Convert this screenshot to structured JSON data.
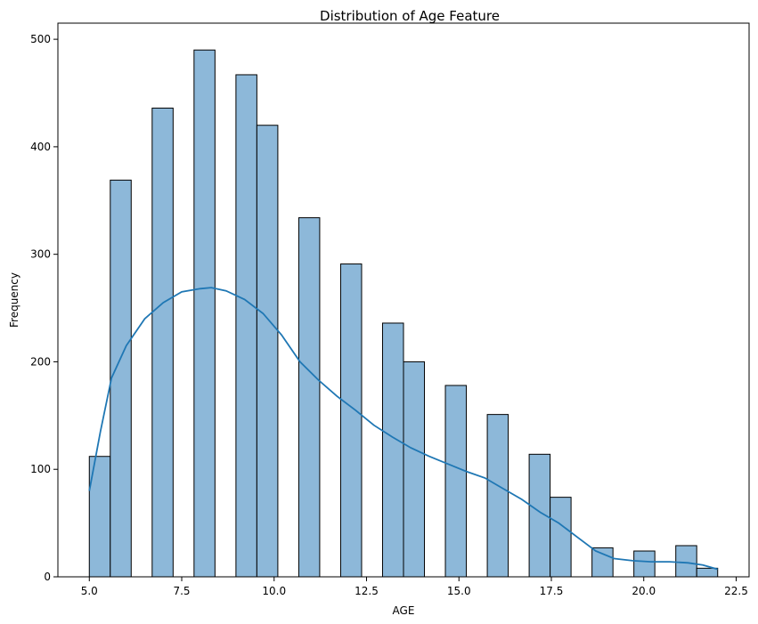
{
  "chart_data": {
    "type": "bar",
    "subtype": "histogram-with-kde",
    "title": "Distribution of Age Feature",
    "xlabel": "AGE",
    "ylabel": "Frequency",
    "xlim": [
      4.15,
      22.85
    ],
    "ylim": [
      0,
      515
    ],
    "xticks": [
      5.0,
      7.5,
      10.0,
      12.5,
      15.0,
      17.5,
      20.0,
      22.5
    ],
    "xtick_labels": [
      "5.0",
      "7.5",
      "10.0",
      "12.5",
      "15.0",
      "17.5",
      "20.0",
      "22.5"
    ],
    "yticks": [
      0,
      100,
      200,
      300,
      400,
      500
    ],
    "ytick_labels": [
      "0",
      "100",
      "200",
      "300",
      "400",
      "500"
    ],
    "grid": false,
    "bar_color": "#8db8d9",
    "bar_edge_color": "#000000",
    "line_color": "#1f77b4",
    "bins": [
      {
        "x0": 5.0,
        "x1": 5.567,
        "value": 112
      },
      {
        "x0": 5.567,
        "x1": 6.133,
        "value": 369
      },
      {
        "x0": 6.7,
        "x1": 7.267,
        "value": 436
      },
      {
        "x0": 7.833,
        "x1": 8.4,
        "value": 490
      },
      {
        "x0": 8.967,
        "x1": 9.533,
        "value": 467
      },
      {
        "x0": 9.533,
        "x1": 10.1,
        "value": 420
      },
      {
        "x0": 10.667,
        "x1": 11.233,
        "value": 334
      },
      {
        "x0": 11.8,
        "x1": 12.367,
        "value": 291
      },
      {
        "x0": 12.933,
        "x1": 13.5,
        "value": 236
      },
      {
        "x0": 13.5,
        "x1": 14.067,
        "value": 200
      },
      {
        "x0": 14.633,
        "x1": 15.2,
        "value": 178
      },
      {
        "x0": 15.767,
        "x1": 16.333,
        "value": 151
      },
      {
        "x0": 16.9,
        "x1": 17.467,
        "value": 114
      },
      {
        "x0": 17.467,
        "x1": 18.033,
        "value": 74
      },
      {
        "x0": 18.6,
        "x1": 19.167,
        "value": 27
      },
      {
        "x0": 19.733,
        "x1": 20.3,
        "value": 24
      },
      {
        "x0": 20.867,
        "x1": 21.433,
        "value": 29
      },
      {
        "x0": 21.433,
        "x1": 22.0,
        "value": 8
      }
    ],
    "kde": {
      "x": [
        5.0,
        5.3,
        5.6,
        6.0,
        6.5,
        7.0,
        7.5,
        8.0,
        8.3,
        8.7,
        9.2,
        9.7,
        10.2,
        10.7,
        11.2,
        11.7,
        12.2,
        12.7,
        13.2,
        13.7,
        14.2,
        14.7,
        15.2,
        15.7,
        16.2,
        16.7,
        17.2,
        17.7,
        18.2,
        18.7,
        19.2,
        19.7,
        20.2,
        20.7,
        21.2,
        21.6,
        22.0
      ],
      "y": [
        80,
        135,
        185,
        215,
        240,
        255,
        265,
        268,
        269,
        266,
        258,
        245,
        225,
        200,
        183,
        168,
        155,
        141,
        130,
        120,
        112,
        105,
        98,
        92,
        82,
        72,
        60,
        50,
        37,
        24,
        17,
        15,
        14,
        14,
        13,
        11,
        7
      ]
    }
  }
}
